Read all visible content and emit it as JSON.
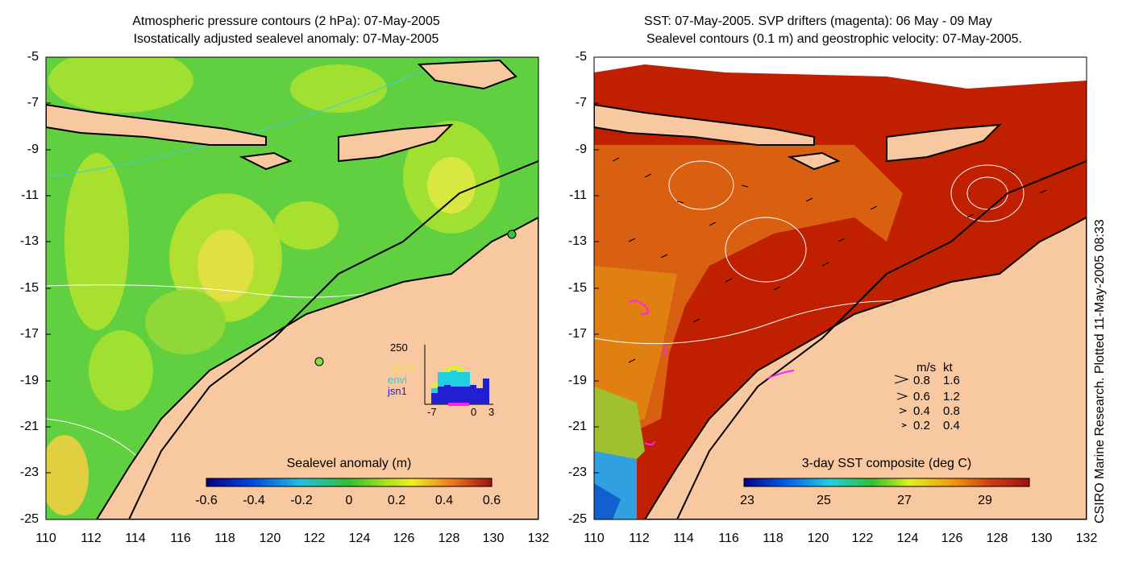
{
  "left_panel": {
    "title_line1": "Atmospheric pressure contours (2 hPa): 07-May-2005",
    "title_line2": "Isostatically adjusted sealevel anomaly: 07-May-2005",
    "colorbar": {
      "title": "Sealevel anomaly (m)",
      "labels": [
        "-0.6",
        "-0.4",
        "-0.2",
        "0",
        "0.2",
        "0.4",
        "0.6"
      ]
    },
    "inset_histogram": {
      "ymax_label": "250",
      "x_labels": [
        "-7",
        "0",
        "3"
      ],
      "series_labels": [
        "GFO",
        "envi",
        "jsn1"
      ],
      "series_colors": [
        "#e8e840",
        "#20d0e0",
        "#2020d0"
      ]
    }
  },
  "right_panel": {
    "title_line1": "SST: 07-May-2005. SVP drifters (magenta): 06 May - 09 May",
    "title_line2": "Sealevel contours (0.1 m) and geostrophic velocity: 07-May-2005.",
    "colorbar": {
      "title": "3-day SST composite (deg C)",
      "labels": [
        "23",
        "25",
        "27",
        "29"
      ]
    },
    "velocity_legend": {
      "header_ms": "m/s",
      "header_kt": "kt",
      "rows": [
        {
          "ms": "0.8",
          "kt": "1.6"
        },
        {
          "ms": "0.6",
          "kt": "1.2"
        },
        {
          "ms": "0.4",
          "kt": "0.8"
        },
        {
          "ms": "0.2",
          "kt": "0.4"
        }
      ]
    }
  },
  "axes": {
    "y_ticks": [
      "-5",
      "-7",
      "-9",
      "-11",
      "-13",
      "-15",
      "-17",
      "-19",
      "-21",
      "-23",
      "-25"
    ],
    "x_ticks": [
      "110",
      "112",
      "114",
      "116",
      "118",
      "120",
      "122",
      "124",
      "126",
      "128",
      "130",
      "132"
    ]
  },
  "credit": "CSIRO Marine Research. Plotted 11-May-2005 08:33",
  "colors": {
    "land": "#f8c8a0",
    "sealevel_base": "#60d040",
    "sst_base": "#c02000",
    "drifters": "#ff20ff",
    "contours": "#ffffff"
  }
}
